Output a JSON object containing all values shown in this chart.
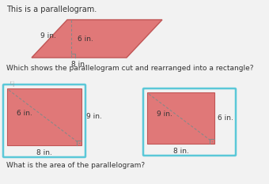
{
  "bg_color": "#f2f2f2",
  "title1": "This is a parallelogram.",
  "question1": "Which shows the parallelogram cut and rearranged into a rectangle?",
  "question2": "What is the area of the parallelogram?",
  "fill_color": "#e07878",
  "para_label_side": "9 in.",
  "para_label_height": "6 in.",
  "para_label_base": "8 in.",
  "rect1_label_diag": "6 in.",
  "rect1_label_right": "9 in.",
  "rect1_label_base": "8 in.",
  "rect2_label_diag": "9 in.",
  "rect2_label_right": "6 in.",
  "rect2_label_base": "8 in.",
  "blue_border": "#5bc8d8",
  "dark_red": "#c05555",
  "gray_line": "#888888",
  "text_color": "#333333"
}
